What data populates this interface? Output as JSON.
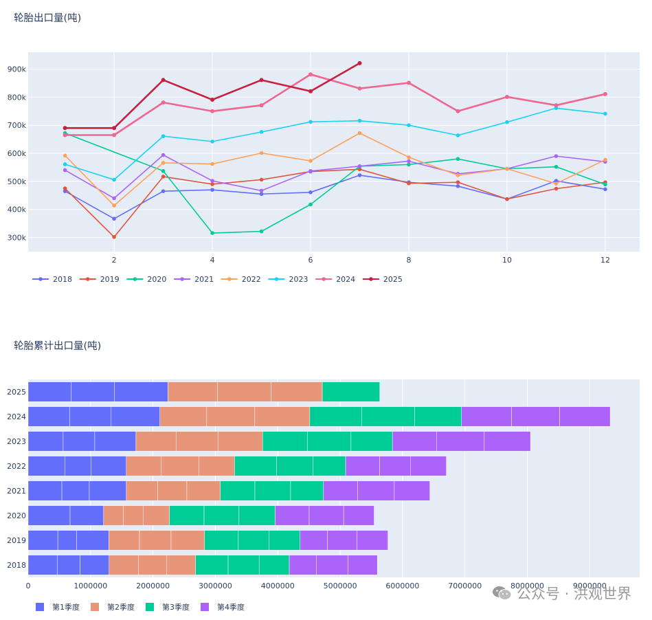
{
  "line_chart_title": "轮胎出口量(吨)",
  "bar_chart_title": "轮胎累计出口量(吨)",
  "watermark": "公众号 · 洪观世界",
  "chart_data": [
    {
      "type": "line",
      "title": "轮胎出口量(吨)",
      "x_ticks": [
        2,
        4,
        6,
        8,
        10,
        12
      ],
      "y_ticks": [
        "300k",
        "400k",
        "500k",
        "600k",
        "700k",
        "800k",
        "900k"
      ],
      "y_tick_values": [
        300000,
        400000,
        500000,
        600000,
        700000,
        800000,
        900000
      ],
      "xlim": [
        0.25,
        12.7
      ],
      "ylim": [
        250000,
        960000
      ],
      "legend": "bottom-left",
      "series": [
        {
          "name": "2018",
          "color": "#636efa",
          "x": [
            1,
            2,
            3,
            4,
            5,
            6,
            7,
            8,
            9,
            10,
            11,
            12
          ],
          "y": [
            465000,
            367000,
            465000,
            470000,
            455000,
            461000,
            522000,
            497000,
            483000,
            437000,
            502000,
            472000
          ]
        },
        {
          "name": "2019",
          "color": "#e0553e",
          "x": [
            1,
            2,
            3,
            4,
            5,
            6,
            7,
            8,
            9,
            10,
            11,
            12
          ],
          "y": [
            475000,
            302000,
            517000,
            490000,
            506000,
            535000,
            543000,
            493000,
            497000,
            437000,
            474000,
            497000
          ]
        },
        {
          "name": "2020",
          "color": "#00cc96",
          "x": [
            1,
            3,
            4,
            5,
            6,
            7,
            8,
            9,
            10,
            11,
            12
          ],
          "y": [
            672000,
            537000,
            316000,
            322000,
            418000,
            554000,
            560000,
            580000,
            545000,
            552000,
            489000
          ]
        },
        {
          "name": "2021",
          "color": "#ab63fa",
          "x": [
            1,
            2,
            3,
            4,
            5,
            6,
            7,
            8,
            9,
            10,
            11,
            12
          ],
          "y": [
            540000,
            440000,
            594000,
            502000,
            467000,
            537000,
            554000,
            572000,
            527000,
            545000,
            590000,
            570000
          ]
        },
        {
          "name": "2022",
          "color": "#ffa15a",
          "x": [
            1,
            2,
            3,
            4,
            5,
            6,
            7,
            8,
            9,
            10,
            11,
            12
          ],
          "y": [
            592000,
            414000,
            566000,
            562000,
            601000,
            573000,
            672000,
            586000,
            522000,
            545000,
            492000,
            577000
          ]
        },
        {
          "name": "2023",
          "color": "#19d3f3",
          "x": [
            1,
            2,
            3,
            4,
            5,
            6,
            7,
            8,
            9,
            10,
            11,
            12
          ],
          "y": [
            561000,
            506000,
            661000,
            642000,
            676000,
            712000,
            716000,
            700000,
            664000,
            711000,
            761000,
            741000
          ]
        },
        {
          "name": "2024",
          "color": "#f0668f",
          "x": [
            1,
            2,
            3,
            4,
            5,
            6,
            7,
            8,
            9,
            10,
            11,
            12
          ],
          "y": [
            665000,
            665000,
            781000,
            750000,
            771000,
            881000,
            831000,
            851000,
            750000,
            801000,
            771000,
            811000
          ]
        },
        {
          "name": "2025",
          "color": "#c9203f",
          "x": [
            1,
            2,
            3,
            4,
            5,
            6,
            7
          ],
          "y": [
            690000,
            690000,
            861000,
            791000,
            861000,
            821000,
            921000
          ]
        }
      ]
    },
    {
      "type": "bar",
      "orientation": "horizontal",
      "stacked": true,
      "title": "轮胎累计出口量(吨)",
      "categories": [
        "2018",
        "2019",
        "2020",
        "2021",
        "2022",
        "2023",
        "2024",
        "2025"
      ],
      "x_ticks": [
        "0",
        "1000000",
        "2000000",
        "3000000",
        "4000000",
        "5000000",
        "6000000",
        "7000000",
        "8000000",
        "9000000"
      ],
      "x_tick_values": [
        0,
        1000000,
        2000000,
        3000000,
        4000000,
        5000000,
        6000000,
        7000000,
        8000000,
        9000000
      ],
      "xlim": [
        0,
        9800000
      ],
      "legend": "bottom-left",
      "series": [
        {
          "name": "第1季度",
          "color": "#636efa",
          "segments": [
            [
              465000,
              367000,
              465000
            ],
            [
              475000,
              302000,
              517000
            ],
            [
              672000,
              537000
            ],
            [
              540000,
              440000,
              594000
            ],
            [
              592000,
              414000,
              566000
            ],
            [
              561000,
              506000,
              661000
            ],
            [
              665000,
              665000,
              781000
            ],
            [
              690000,
              690000,
              861000
            ]
          ]
        },
        {
          "name": "第2季度",
          "color": "#e8967a",
          "segments": [
            [
              470000,
              455000,
              461000
            ],
            [
              490000,
              506000,
              535000
            ],
            [
              316000,
              322000,
              418000
            ],
            [
              502000,
              467000,
              537000
            ],
            [
              562000,
              601000,
              573000
            ],
            [
              642000,
              676000,
              712000
            ],
            [
              750000,
              771000,
              881000
            ],
            [
              791000,
              861000,
              821000
            ]
          ]
        },
        {
          "name": "第3季度",
          "color": "#00cc96",
          "segments": [
            [
              522000,
              497000,
              483000
            ],
            [
              543000,
              493000,
              497000
            ],
            [
              554000,
              560000,
              580000
            ],
            [
              554000,
              572000,
              527000
            ],
            [
              672000,
              586000,
              522000
            ],
            [
              716000,
              700000,
              664000
            ],
            [
              831000,
              851000,
              750000
            ],
            [
              921000
            ]
          ]
        },
        {
          "name": "第4季度",
          "color": "#ab63fa",
          "segments": [
            [
              437000,
              502000,
              472000
            ],
            [
              437000,
              474000,
              497000
            ],
            [
              545000,
              552000,
              489000
            ],
            [
              545000,
              590000,
              570000
            ],
            [
              545000,
              492000,
              577000
            ],
            [
              711000,
              761000,
              741000
            ],
            [
              801000,
              771000,
              811000
            ],
            []
          ]
        }
      ]
    }
  ]
}
